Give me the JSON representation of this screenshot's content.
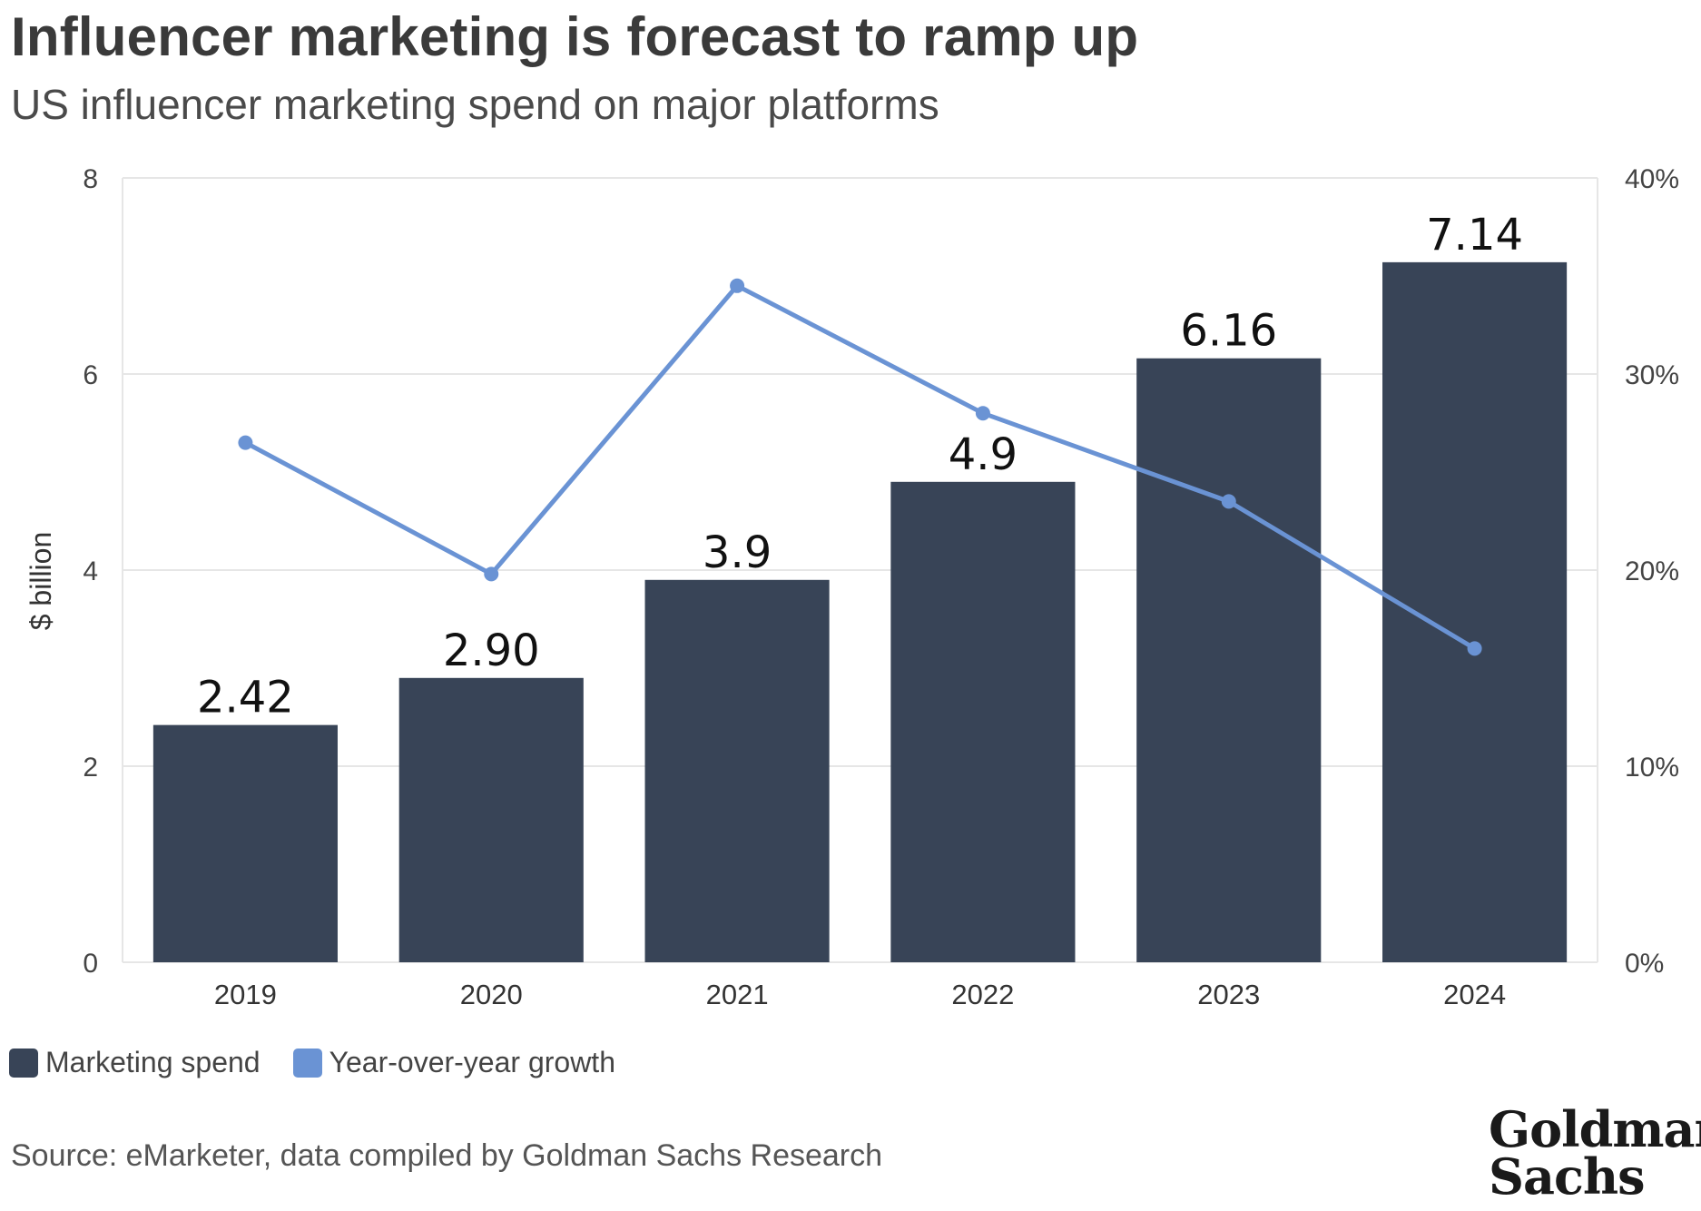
{
  "header": {
    "title": "Influencer marketing is forecast to ramp up",
    "subtitle": "US influencer marketing spend on major platforms"
  },
  "legend": {
    "spend_label": "Marketing spend",
    "growth_label": "Year-over-year growth"
  },
  "footer": {
    "source": "Source: eMarketer, data compiled by Goldman Sachs Research",
    "logo_line1": "Goldman",
    "logo_line2": "Sachs"
  },
  "colors": {
    "bar": "#384457",
    "line": "#6a93d4",
    "grid": "#e6e6e6"
  },
  "chart_data": {
    "type": "bar",
    "categories": [
      "2019",
      "2020",
      "2021",
      "2022",
      "2023",
      "2024"
    ],
    "ylabel": "$ billion",
    "ylim": [
      0,
      8
    ],
    "yticks": [
      0,
      2,
      4,
      6,
      8
    ],
    "y2lim": [
      0,
      40
    ],
    "y2ticks": [
      "0%",
      "10%",
      "20%",
      "30%",
      "40%"
    ],
    "grid": true,
    "legend_position": "bottom-left",
    "series": [
      {
        "name": "Marketing spend",
        "type": "bar",
        "axis": "left",
        "values": [
          2.42,
          2.9,
          3.9,
          4.9,
          6.16,
          7.14
        ],
        "labels": [
          "2.42",
          "2.90",
          "3.9",
          "4.9",
          "6.16",
          "7.14"
        ]
      },
      {
        "name": "Year-over-year growth",
        "type": "line",
        "axis": "right",
        "values": [
          26.5,
          19.8,
          34.5,
          28.0,
          23.5,
          16.0
        ]
      }
    ]
  }
}
